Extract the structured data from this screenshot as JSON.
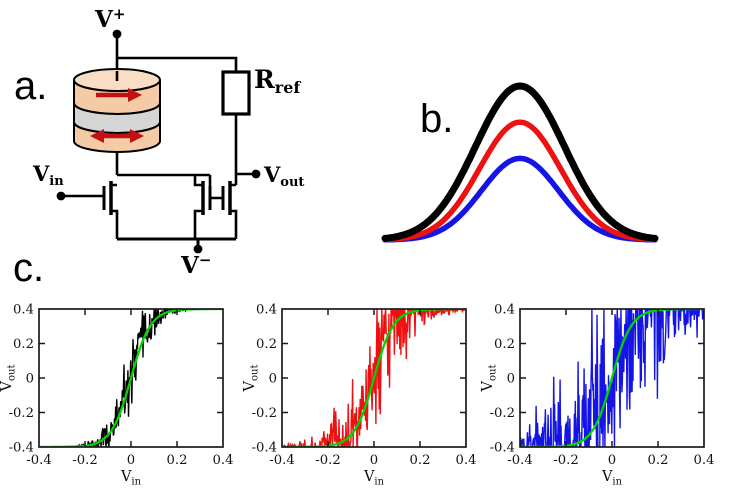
{
  "figure": {
    "background": "#ffffff"
  },
  "panels": {
    "a": {
      "label": "a.",
      "v_plus": {
        "main": "V",
        "sup": "+"
      },
      "v_minus": {
        "main": "V",
        "sup": "−"
      },
      "v_in": {
        "main": "V",
        "sub": "in"
      },
      "v_out": {
        "main": "V",
        "sub": "out"
      },
      "r_ref": {
        "main": "R",
        "sub": "ref"
      },
      "mtj": {
        "free_layer_color": "#f4cba6",
        "top_face_color": "#f9ddc5",
        "barrier_color": "#d5d5d5",
        "arrow_color": "#c11212",
        "outline_color": "#000000"
      }
    },
    "b": {
      "label": "b."
    },
    "c": {
      "label": "c."
    }
  },
  "chart_data": [
    {
      "type": "line",
      "panel": "b",
      "description": "Three nested bell-shaped (Gaussian) curves sharing a common baseline and center; black is tallest and widest, red intermediate, blue smallest.",
      "x_range": [
        -1,
        1
      ],
      "series": [
        {
          "name": "blue",
          "color": "#1414e6",
          "amplitude": 0.53,
          "sigma": 0.285,
          "stroke_px": 5.5
        },
        {
          "name": "red",
          "color": "#ee1111",
          "amplitude": 0.765,
          "sigma": 0.3,
          "stroke_px": 5.5
        },
        {
          "name": "black",
          "color": "#000000",
          "amplitude": 1.0,
          "sigma": 0.33,
          "stroke_px": 7
        }
      ],
      "legend": "none",
      "grid": false
    },
    {
      "type": "line",
      "panel": "c",
      "description": "Three voltage-transfer plots: noisy sigmoidal Vout vs Vin data (black, red, blue with increasing stochastic noise) each overlaid with a smooth green sigmoid fit.",
      "xlabel_main": "V",
      "xlabel_sub": "in",
      "ylabel_main": "V",
      "ylabel_sub": "out",
      "xlim": [
        -0.4,
        0.4
      ],
      "ylim": [
        -0.4,
        0.4
      ],
      "x_ticks": [
        -0.4,
        -0.2,
        0,
        0.2,
        0.4
      ],
      "y_ticks": [
        0.4,
        0.2,
        0,
        -0.2,
        -0.4
      ],
      "x_tick_labels": [
        "-0.4",
        "-0.2",
        "0",
        "0.2",
        "0.4"
      ],
      "y_tick_labels": [
        "0.4",
        "0.2",
        "0",
        "-0.2",
        "-0.4"
      ],
      "fit": {
        "color": "#00d500",
        "amplitude": 0.4,
        "slope": 0.085,
        "formula": "Vout = 0.4*tanh(Vin/0.085)"
      },
      "plots": [
        {
          "name": "black",
          "color": "#000000",
          "noise_sigma": 0.085,
          "noise_width": 0.09,
          "n_points": 330,
          "seed": 11
        },
        {
          "name": "red",
          "color": "#ee1111",
          "noise_sigma": 0.17,
          "noise_width": 0.15,
          "n_points": 340,
          "seed": 22
        },
        {
          "name": "blue",
          "color": "#1414e6",
          "noise_sigma": 0.3,
          "noise_width": 0.22,
          "n_points": 400,
          "seed": 33
        }
      ],
      "grid": false,
      "legend": "none"
    }
  ]
}
